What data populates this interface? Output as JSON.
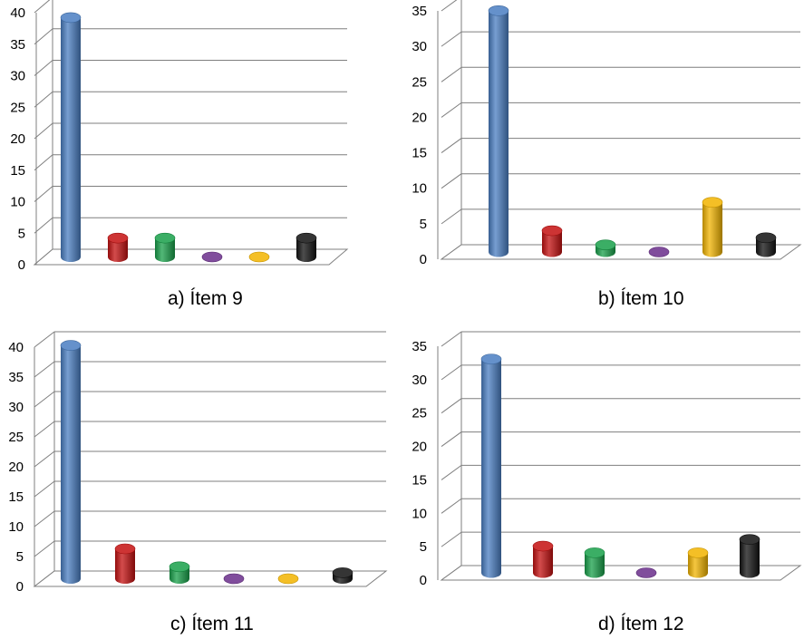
{
  "colors": {
    "blue": "#4A7EC2",
    "red": "#C41010",
    "green": "#18A04A",
    "purple": "#6A2E8A",
    "yellow": "#F2B400",
    "black": "#111111",
    "grid": "#7F7F7F"
  },
  "chart_data": [
    {
      "type": "bar",
      "caption": "a) Ítem 9",
      "ylim": [
        0,
        40
      ],
      "yticks": [
        "0",
        "5",
        "10",
        "15",
        "20",
        "25",
        "30",
        "35",
        "40"
      ],
      "grid": true,
      "values": [
        38,
        3,
        3,
        0,
        0,
        3
      ]
    },
    {
      "type": "bar",
      "caption": "b) Ítem 10",
      "ylim": [
        0,
        35
      ],
      "yticks": [
        "0",
        "5",
        "10",
        "15",
        "20",
        "25",
        "30",
        "35"
      ],
      "grid": true,
      "values": [
        34,
        3,
        1,
        0,
        7,
        2
      ]
    },
    {
      "type": "bar",
      "caption": "c) Ítem 11",
      "ylim": [
        0,
        40
      ],
      "yticks": [
        "0",
        "5",
        "10",
        "15",
        "20",
        "25",
        "30",
        "35",
        "40"
      ],
      "grid": true,
      "values": [
        39,
        5,
        2,
        0,
        0,
        1
      ]
    },
    {
      "type": "bar",
      "caption": "d) Ítem 12",
      "ylim": [
        0,
        35
      ],
      "yticks": [
        "0",
        "5",
        "10",
        "15",
        "20",
        "25",
        "30",
        "35"
      ],
      "grid": true,
      "values": [
        32,
        4,
        3,
        0,
        3,
        5
      ]
    }
  ]
}
